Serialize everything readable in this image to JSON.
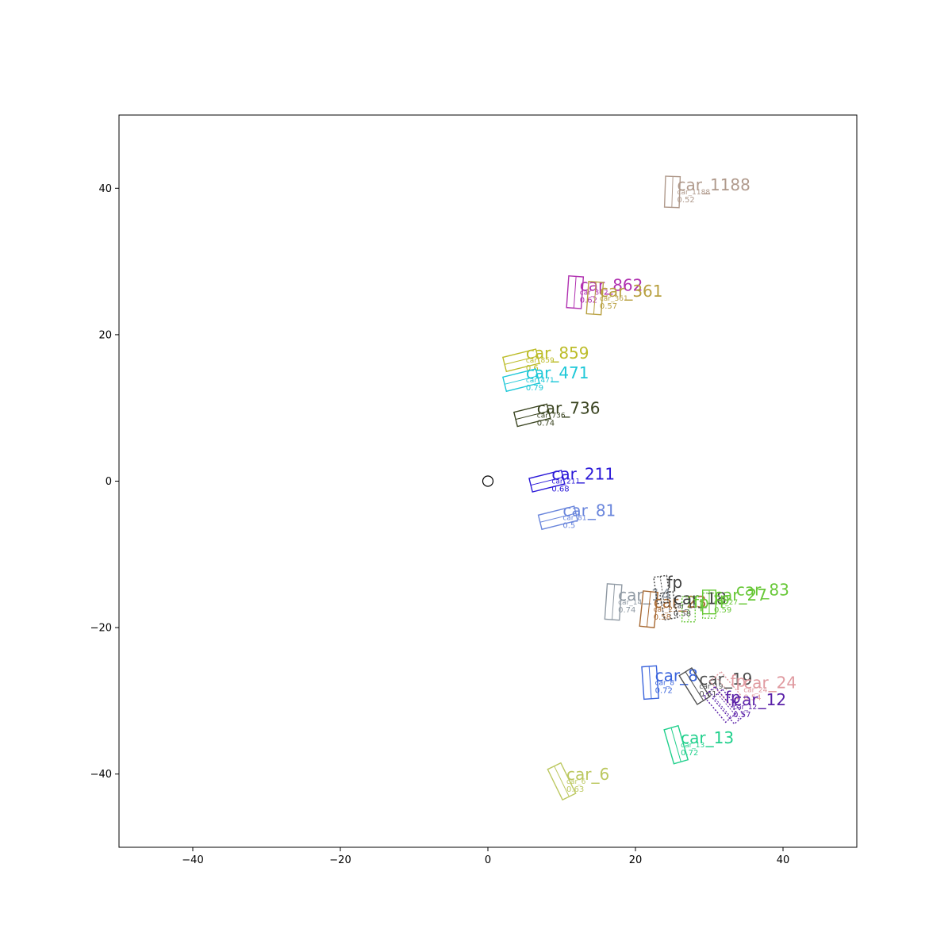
{
  "chart_data": {
    "type": "scatter",
    "title": "",
    "xlabel": "",
    "ylabel": "",
    "xlim": [
      -50,
      50
    ],
    "ylim": [
      -50,
      50
    ],
    "grid": false,
    "legend": "none",
    "xticks": [
      -40,
      -20,
      0,
      20,
      40
    ],
    "yticks": [
      -40,
      -20,
      0,
      20,
      40
    ],
    "x_tick_labels": [
      "−40",
      "−20",
      "0",
      "20",
      "40"
    ],
    "y_tick_labels": [
      "−40",
      "−20",
      "0",
      "20",
      "40"
    ],
    "ego": {
      "x": 0,
      "y": 0
    },
    "boxes": [
      {
        "label": "car_1188",
        "score": "0.52",
        "sublabel": "car_1188",
        "x": 25.0,
        "y": 39.5,
        "w": 2.0,
        "l": 4.2,
        "angle": -92,
        "color": "#b09a8c",
        "dashed": false,
        "label_dx": 0.0,
        "label_dy": 0.0
      },
      {
        "label": "car_862",
        "score": "0.62",
        "sublabel": "car_862",
        "x": 11.8,
        "y": 25.8,
        "w": 2.0,
        "l": 4.3,
        "angle": -94,
        "color": "#b030b0",
        "dashed": false,
        "label_dx": 0.0,
        "label_dy": 0.0
      },
      {
        "label": "car_361",
        "score": "0.57",
        "sublabel": "car_361",
        "x": 14.5,
        "y": 25.0,
        "w": 2.0,
        "l": 4.4,
        "angle": -94,
        "color": "#b8a040",
        "dashed": false,
        "label_dx": 0.0,
        "label_dy": 0.0
      },
      {
        "label": "car_859",
        "score": "0.6",
        "sublabel": "car_859",
        "x": 4.5,
        "y": 16.5,
        "w": 2.0,
        "l": 4.6,
        "angle": 14,
        "color": "#bcbc28",
        "dashed": false,
        "label_dx": 0.0,
        "label_dy": 0.0
      },
      {
        "label": "car_471",
        "score": "0.79",
        "sublabel": "car_471",
        "x": 4.5,
        "y": 13.8,
        "w": 2.0,
        "l": 4.6,
        "angle": 14,
        "color": "#1ec8d8",
        "dashed": false,
        "label_dx": 0.0,
        "label_dy": 0.0
      },
      {
        "label": "car_736",
        "score": "0.74",
        "sublabel": "car_736",
        "x": 6.0,
        "y": 9.0,
        "w": 2.0,
        "l": 4.6,
        "angle": 14,
        "color": "#3a4420",
        "dashed": false,
        "label_dx": 0.0,
        "label_dy": 0.0
      },
      {
        "label": "car_211",
        "score": "0.68",
        "sublabel": "car_211",
        "x": 8.0,
        "y": 0.0,
        "w": 1.9,
        "l": 4.5,
        "angle": 14,
        "color": "#2a18d8",
        "dashed": false,
        "label_dx": 0.0,
        "label_dy": 0.0
      },
      {
        "label": "car_81",
        "score": "0.5",
        "sublabel": "car_81",
        "x": 9.5,
        "y": -5.0,
        "w": 2.0,
        "l": 5.0,
        "angle": 14,
        "color": "#6a86dc",
        "dashed": false,
        "label_dx": 0.0,
        "label_dy": 0.0
      },
      {
        "label": "car_14",
        "score": "0.74",
        "sublabel": "car_14",
        "x": 17.0,
        "y": -16.5,
        "w": 2.0,
        "l": 4.8,
        "angle": -94,
        "color": "#909aa4",
        "dashed": false,
        "label_dx": 0.0,
        "label_dy": 0.0
      },
      {
        "label": "car_23",
        "score": "0.58",
        "sublabel": "car_23",
        "x": 21.8,
        "y": -17.5,
        "w": 2.0,
        "l": 4.8,
        "angle": -96,
        "color": "#a86a34",
        "dashed": false,
        "label_dx": 0.0,
        "label_dy": 0.0
      },
      {
        "label": "fp",
        "score": "",
        "sublabel": "",
        "x": 23.6,
        "y": -14.8,
        "w": 1.8,
        "l": 3.6,
        "angle": -82,
        "color": "#404040",
        "dashed": true,
        "label_dx": 0.0,
        "label_dy": 0.0
      },
      {
        "label": "car_18",
        "score": "0.58",
        "sublabel": "car_18",
        "x": 24.5,
        "y": -17.0,
        "w": 1.8,
        "l": 3.6,
        "angle": -80,
        "color": "#404040",
        "dashed": true,
        "label_dx": 0.0,
        "label_dy": 0.0
      },
      {
        "label": "fp",
        "score": "",
        "sublabel": "",
        "x": 27.2,
        "y": -17.5,
        "w": 1.8,
        "l": 3.4,
        "angle": -90,
        "color": "#68c838",
        "dashed": true,
        "label_dx": 0.0,
        "label_dy": 0.0
      },
      {
        "label": "fp",
        "score": "",
        "sublabel": "",
        "x": 30.0,
        "y": -17.0,
        "w": 1.8,
        "l": 3.4,
        "angle": -90,
        "color": "#68c838",
        "dashed": true,
        "label_dx": 0.0,
        "label_dy": 0.0
      },
      {
        "label": "car_27",
        "score": "0.59",
        "sublabel": "car_27",
        "x": 30.0,
        "y": -16.5,
        "w": 1.8,
        "l": 3.2,
        "angle": -90,
        "color": "#68c838",
        "dashed": false,
        "label_dx": 0.0,
        "label_dy": 0.0
      },
      {
        "label": "car_83",
        "score": "",
        "sublabel": "",
        "x": 33.0,
        "y": -15.8,
        "w": 0.1,
        "l": 0.1,
        "angle": 0,
        "color": "#68c838",
        "dashed": false,
        "label_dx": 0.0,
        "label_dy": 0.0
      },
      {
        "label": "car_8",
        "score": "0.72",
        "sublabel": "car_8",
        "x": 22.0,
        "y": -27.5,
        "w": 2.0,
        "l": 4.4,
        "angle": -86,
        "color": "#3a64dc",
        "dashed": false,
        "label_dx": 0.0,
        "label_dy": 0.0
      },
      {
        "label": "car_19",
        "score": "0.61",
        "sublabel": "car_19",
        "x": 28.0,
        "y": -28.0,
        "w": 2.0,
        "l": 4.6,
        "angle": -58,
        "color": "#505050",
        "dashed": false,
        "label_dx": 0.0,
        "label_dy": 0.0
      },
      {
        "label": "fp",
        "score": "",
        "sublabel": "",
        "x": 32.2,
        "y": -28.3,
        "w": 2.0,
        "l": 4.2,
        "angle": -50,
        "color": "#e09aa0",
        "dashed": true,
        "label_dx": 0.0,
        "label_dy": 0.0
      },
      {
        "label": "car_24",
        "score": "0.54",
        "sublabel": "car_24",
        "x": 34.0,
        "y": -28.5,
        "w": 0.1,
        "l": 0.1,
        "angle": 0,
        "color": "#e09aa0",
        "dashed": false,
        "label_dx": 0.0,
        "label_dy": 0.0
      },
      {
        "label": "fp",
        "score": "",
        "sublabel": "",
        "x": 31.5,
        "y": -30.5,
        "w": 2.0,
        "l": 4.6,
        "angle": -50,
        "color": "#5a20a8",
        "dashed": true,
        "label_dx": 0.0,
        "label_dy": 0.0
      },
      {
        "label": "car_12",
        "score": "0.57",
        "sublabel": "car_12",
        "x": 32.6,
        "y": -30.8,
        "w": 1.8,
        "l": 4.6,
        "angle": -50,
        "color": "#5a20a8",
        "dashed": true,
        "label_dx": 0.0,
        "label_dy": 0.0
      },
      {
        "label": "car_13",
        "score": "0.72",
        "sublabel": "car_13",
        "x": 25.5,
        "y": -36.0,
        "w": 2.0,
        "l": 4.8,
        "angle": -74,
        "color": "#20d08c",
        "dashed": false,
        "label_dx": 0.0,
        "label_dy": 0.0
      },
      {
        "label": "car_6",
        "score": "0.63",
        "sublabel": "car_6",
        "x": 10.0,
        "y": -41.0,
        "w": 2.0,
        "l": 4.6,
        "angle": -64,
        "color": "#bcc860",
        "dashed": false,
        "label_dx": 0.0,
        "label_dy": 0.0
      }
    ]
  }
}
